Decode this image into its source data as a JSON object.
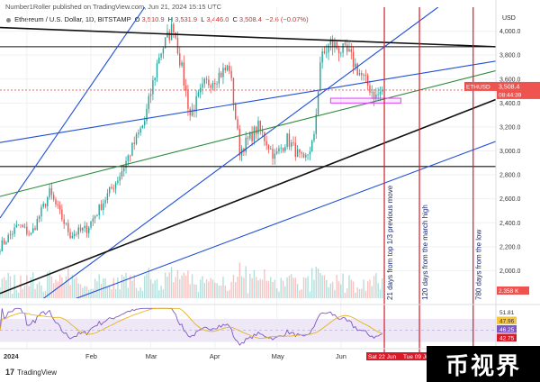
{
  "header": {
    "publisher_line": "Number1Roller published on TradingView.com, Jun 21, 2024 15:15 UTC",
    "symbol_line": "Ethereum / U.S. Dollar, 1D, BITSTAMP",
    "ohlc": [
      {
        "label": "O",
        "value": "3,510.9"
      },
      {
        "label": "H",
        "value": "3,531.9"
      },
      {
        "label": "L",
        "value": "3,446.0"
      },
      {
        "label": "C",
        "value": "3,508.4"
      },
      {
        "label": "",
        "value": "−2.6 (−0.07%)"
      }
    ]
  },
  "footer": {
    "logo_text": "TradingView",
    "logo_glyph": "17"
  },
  "watermark": {
    "text": "币视界"
  },
  "colors": {
    "up": "#26a69a",
    "down": "#ef5350",
    "trend_blue": "#1e4fd8",
    "trend_green": "#2e8b3a",
    "trend_black": "#111111",
    "vertical_red": "#d81b2b",
    "rsi_line": "#7e57c2",
    "rsi_ma": "#e6b422",
    "rsi_band": "#ede7f6",
    "box": "#e040fb"
  },
  "chart_data": {
    "type": "candlestick",
    "title": "Ethereum / U.S. Dollar, 1D, BITSTAMP",
    "currency": "USD",
    "y_ticks": [
      "4,000.0",
      "3,800.0",
      "3,600.0",
      "3,400.0",
      "3,200.0",
      "3,000.0",
      "2,800.0",
      "2,600.0",
      "2,400.0",
      "2,200.0",
      "2,000.0"
    ],
    "y_tick_values": [
      4000,
      3800,
      3600,
      3400,
      3200,
      3000,
      2800,
      2600,
      2400,
      2200,
      2000
    ],
    "ylim": [
      1770,
      4200
    ],
    "x_ticks": [
      {
        "label": "2024",
        "date": "2024-01-01"
      },
      {
        "label": "Feb",
        "date": "2024-02-01"
      },
      {
        "label": "Mar",
        "date": "2024-03-01"
      },
      {
        "label": "Apr",
        "date": "2024-04-01"
      },
      {
        "label": "May",
        "date": "2024-05-01"
      },
      {
        "label": "Jun",
        "date": "2024-06-01"
      }
    ],
    "x_range": [
      "2023-12-19",
      "2024-08-15"
    ],
    "anchors": [
      [
        "2023-12-19",
        2200
      ],
      [
        "2023-12-28",
        2380
      ],
      [
        "2024-01-03",
        2300
      ],
      [
        "2024-01-12",
        2650
      ],
      [
        "2024-01-22",
        2300
      ],
      [
        "2024-01-30",
        2350
      ],
      [
        "2024-02-15",
        2800
      ],
      [
        "2024-02-27",
        3250
      ],
      [
        "2024-03-05",
        3800
      ],
      [
        "2024-03-12",
        4050
      ],
      [
        "2024-03-20",
        3300
      ],
      [
        "2024-03-27",
        3550
      ],
      [
        "2024-04-08",
        3700
      ],
      [
        "2024-04-13",
        3000
      ],
      [
        "2024-04-22",
        3200
      ],
      [
        "2024-04-30",
        2950
      ],
      [
        "2024-05-06",
        3100
      ],
      [
        "2024-05-14",
        2900
      ],
      [
        "2024-05-19",
        3100
      ],
      [
        "2024-05-22",
        3750
      ],
      [
        "2024-05-27",
        3900
      ],
      [
        "2024-06-05",
        3800
      ],
      [
        "2024-06-10",
        3650
      ],
      [
        "2024-06-18",
        3450
      ],
      [
        "2024-06-21",
        3508
      ]
    ],
    "last_price": {
      "label": "ETHUSD",
      "value": "3,508.4",
      "countdown": "08:44:39"
    },
    "horizontal_lines": [
      3870,
      2870
    ],
    "trendlines": [
      {
        "color": "blue",
        "from": [
          "2023-12-19",
          2440
        ],
        "to": [
          "2024-02-27",
          4200
        ]
      },
      {
        "color": "blue",
        "from": [
          "2023-12-19",
          1500
        ],
        "to": [
          "2024-07-18",
          4200
        ]
      },
      {
        "color": "black",
        "from": [
          "2023-12-19",
          4030
        ],
        "to": [
          "2024-08-15",
          3870
        ]
      },
      {
        "color": "blue",
        "from": [
          "2023-12-19",
          3070
        ],
        "to": [
          "2024-08-15",
          3750
        ]
      },
      {
        "color": "green",
        "from": [
          "2023-12-19",
          2620
        ],
        "to": [
          "2024-08-15",
          3670
        ]
      },
      {
        "color": "black",
        "from": [
          "2023-12-19",
          1810
        ],
        "to": [
          "2024-08-15",
          3430
        ]
      },
      {
        "color": "blue",
        "from": [
          "2023-12-19",
          1530
        ],
        "to": [
          "2024-08-15",
          3080
        ]
      }
    ],
    "support_box": {
      "from": "2024-05-27",
      "to": "2024-06-30",
      "low": 3400,
      "high": 3440
    },
    "volume_label": "2.358 K",
    "rsi": {
      "ticks": [
        "51.81",
        "47.96",
        "46.25",
        "42.75"
      ],
      "band": [
        30,
        70
      ]
    },
    "vertical_markers": [
      {
        "date": "2024-06-22",
        "label": "21 days from top 1/3 previous move",
        "date_label": "Sat 22 Jun"
      },
      {
        "date": "2024-07-09",
        "label": "120 days from the march high",
        "date_label": "Tue 09 Jul"
      },
      {
        "date": "2024-08-04",
        "label": "780 days from the low",
        "date_label": ""
      }
    ]
  }
}
